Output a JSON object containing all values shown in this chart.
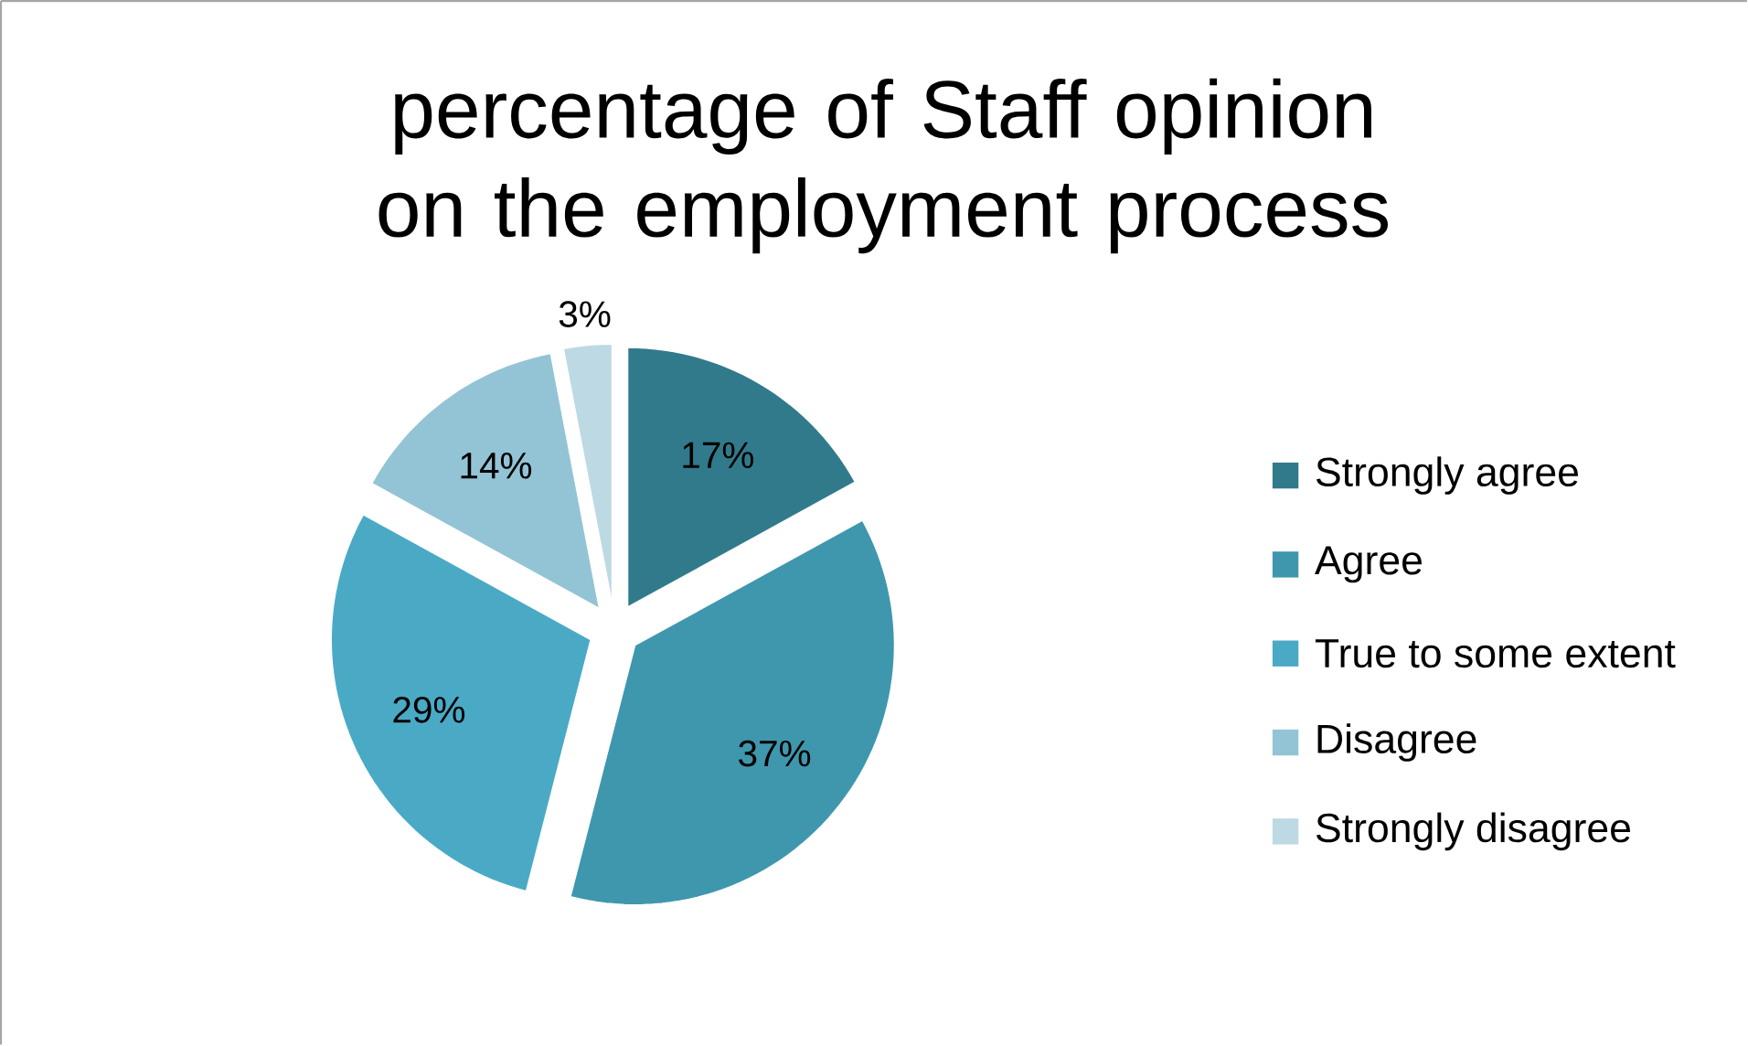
{
  "chart_data": {
    "type": "pie",
    "title": "percentage of Staff opinion on the employment process",
    "categories": [
      "Strongly agree",
      "Agree",
      "True to some extent",
      "Disagree",
      "Strongly disagree"
    ],
    "values": [
      17,
      37,
      29,
      14,
      3
    ],
    "colors": [
      "#317a8c",
      "#3f97ae",
      "#4aaac6",
      "#93c4d5",
      "#bdd9e4"
    ],
    "value_labels": [
      "17%",
      "37%",
      "29%",
      "14%",
      "3%"
    ],
    "legend": "right"
  }
}
